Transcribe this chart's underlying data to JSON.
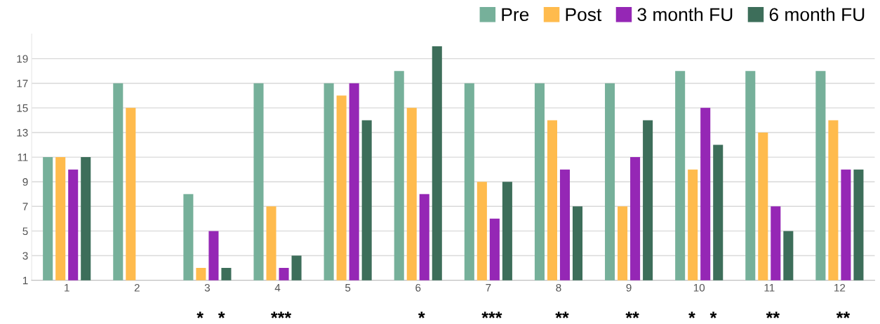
{
  "chart_data": {
    "type": "bar",
    "categories": [
      "1",
      "2",
      "3",
      "4",
      "5",
      "6",
      "7",
      "8",
      "9",
      "10",
      "11",
      "12"
    ],
    "series": [
      {
        "name": "Pre",
        "color": "#76b09a",
        "values": [
          11,
          17,
          8,
          17,
          17,
          18,
          17,
          17,
          17,
          18,
          18,
          18
        ]
      },
      {
        "name": "Post",
        "color": "#ffbb4d",
        "values": [
          11,
          15,
          2,
          7,
          16,
          15,
          9,
          14,
          7,
          10,
          13,
          14
        ]
      },
      {
        "name": "3 month FU",
        "color": "#9527b5",
        "values": [
          10,
          null,
          5,
          2,
          17,
          8,
          6,
          10,
          11,
          15,
          7,
          10
        ]
      },
      {
        "name": "6 month FU",
        "color": "#3d6e5a",
        "values": [
          11,
          null,
          2,
          3,
          14,
          20,
          9,
          7,
          14,
          12,
          5,
          10
        ]
      }
    ],
    "ylim": [
      1,
      21
    ],
    "yticks": [
      1,
      3,
      5,
      7,
      9,
      11,
      13,
      15,
      17,
      19
    ],
    "grid": "y",
    "legend": "top right",
    "annotations": [
      null,
      null,
      "*   *",
      "***",
      null,
      "*",
      "***",
      "**",
      "**",
      "*   *",
      "**",
      "**"
    ]
  }
}
